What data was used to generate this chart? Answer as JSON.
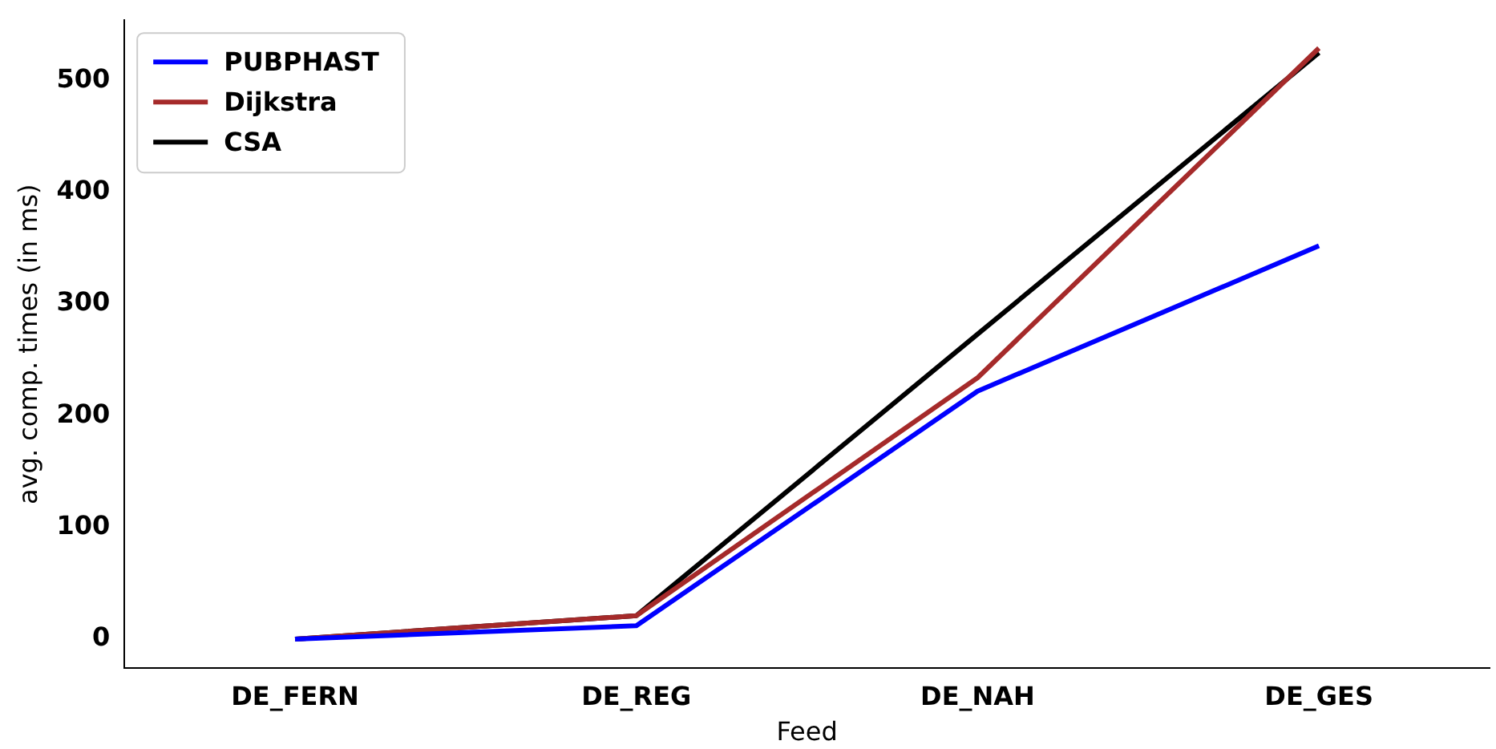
{
  "chart_data": {
    "type": "line",
    "xlabel": "Feed",
    "ylabel": "avg. comp. times (in ms)",
    "categories": [
      "DE_FERN",
      "DE_REG",
      "DE_NAH",
      "DE_GES"
    ],
    "series": [
      {
        "name": "PUBPHAST",
        "color": "#0000ff",
        "values": [
          0,
          12,
          222,
          352
        ]
      },
      {
        "name": "Dijkstra",
        "color": "#a52a2a",
        "values": [
          0,
          21,
          234,
          529
        ]
      },
      {
        "name": "CSA",
        "color": "#000000",
        "values": [
          0,
          21,
          273,
          525
        ]
      }
    ],
    "ylim": [
      -26,
      554
    ],
    "yticks": [
      0,
      100,
      200,
      300,
      400,
      500
    ],
    "grid": false,
    "legend": "top left",
    "marker": "none",
    "line_style": "solid"
  }
}
